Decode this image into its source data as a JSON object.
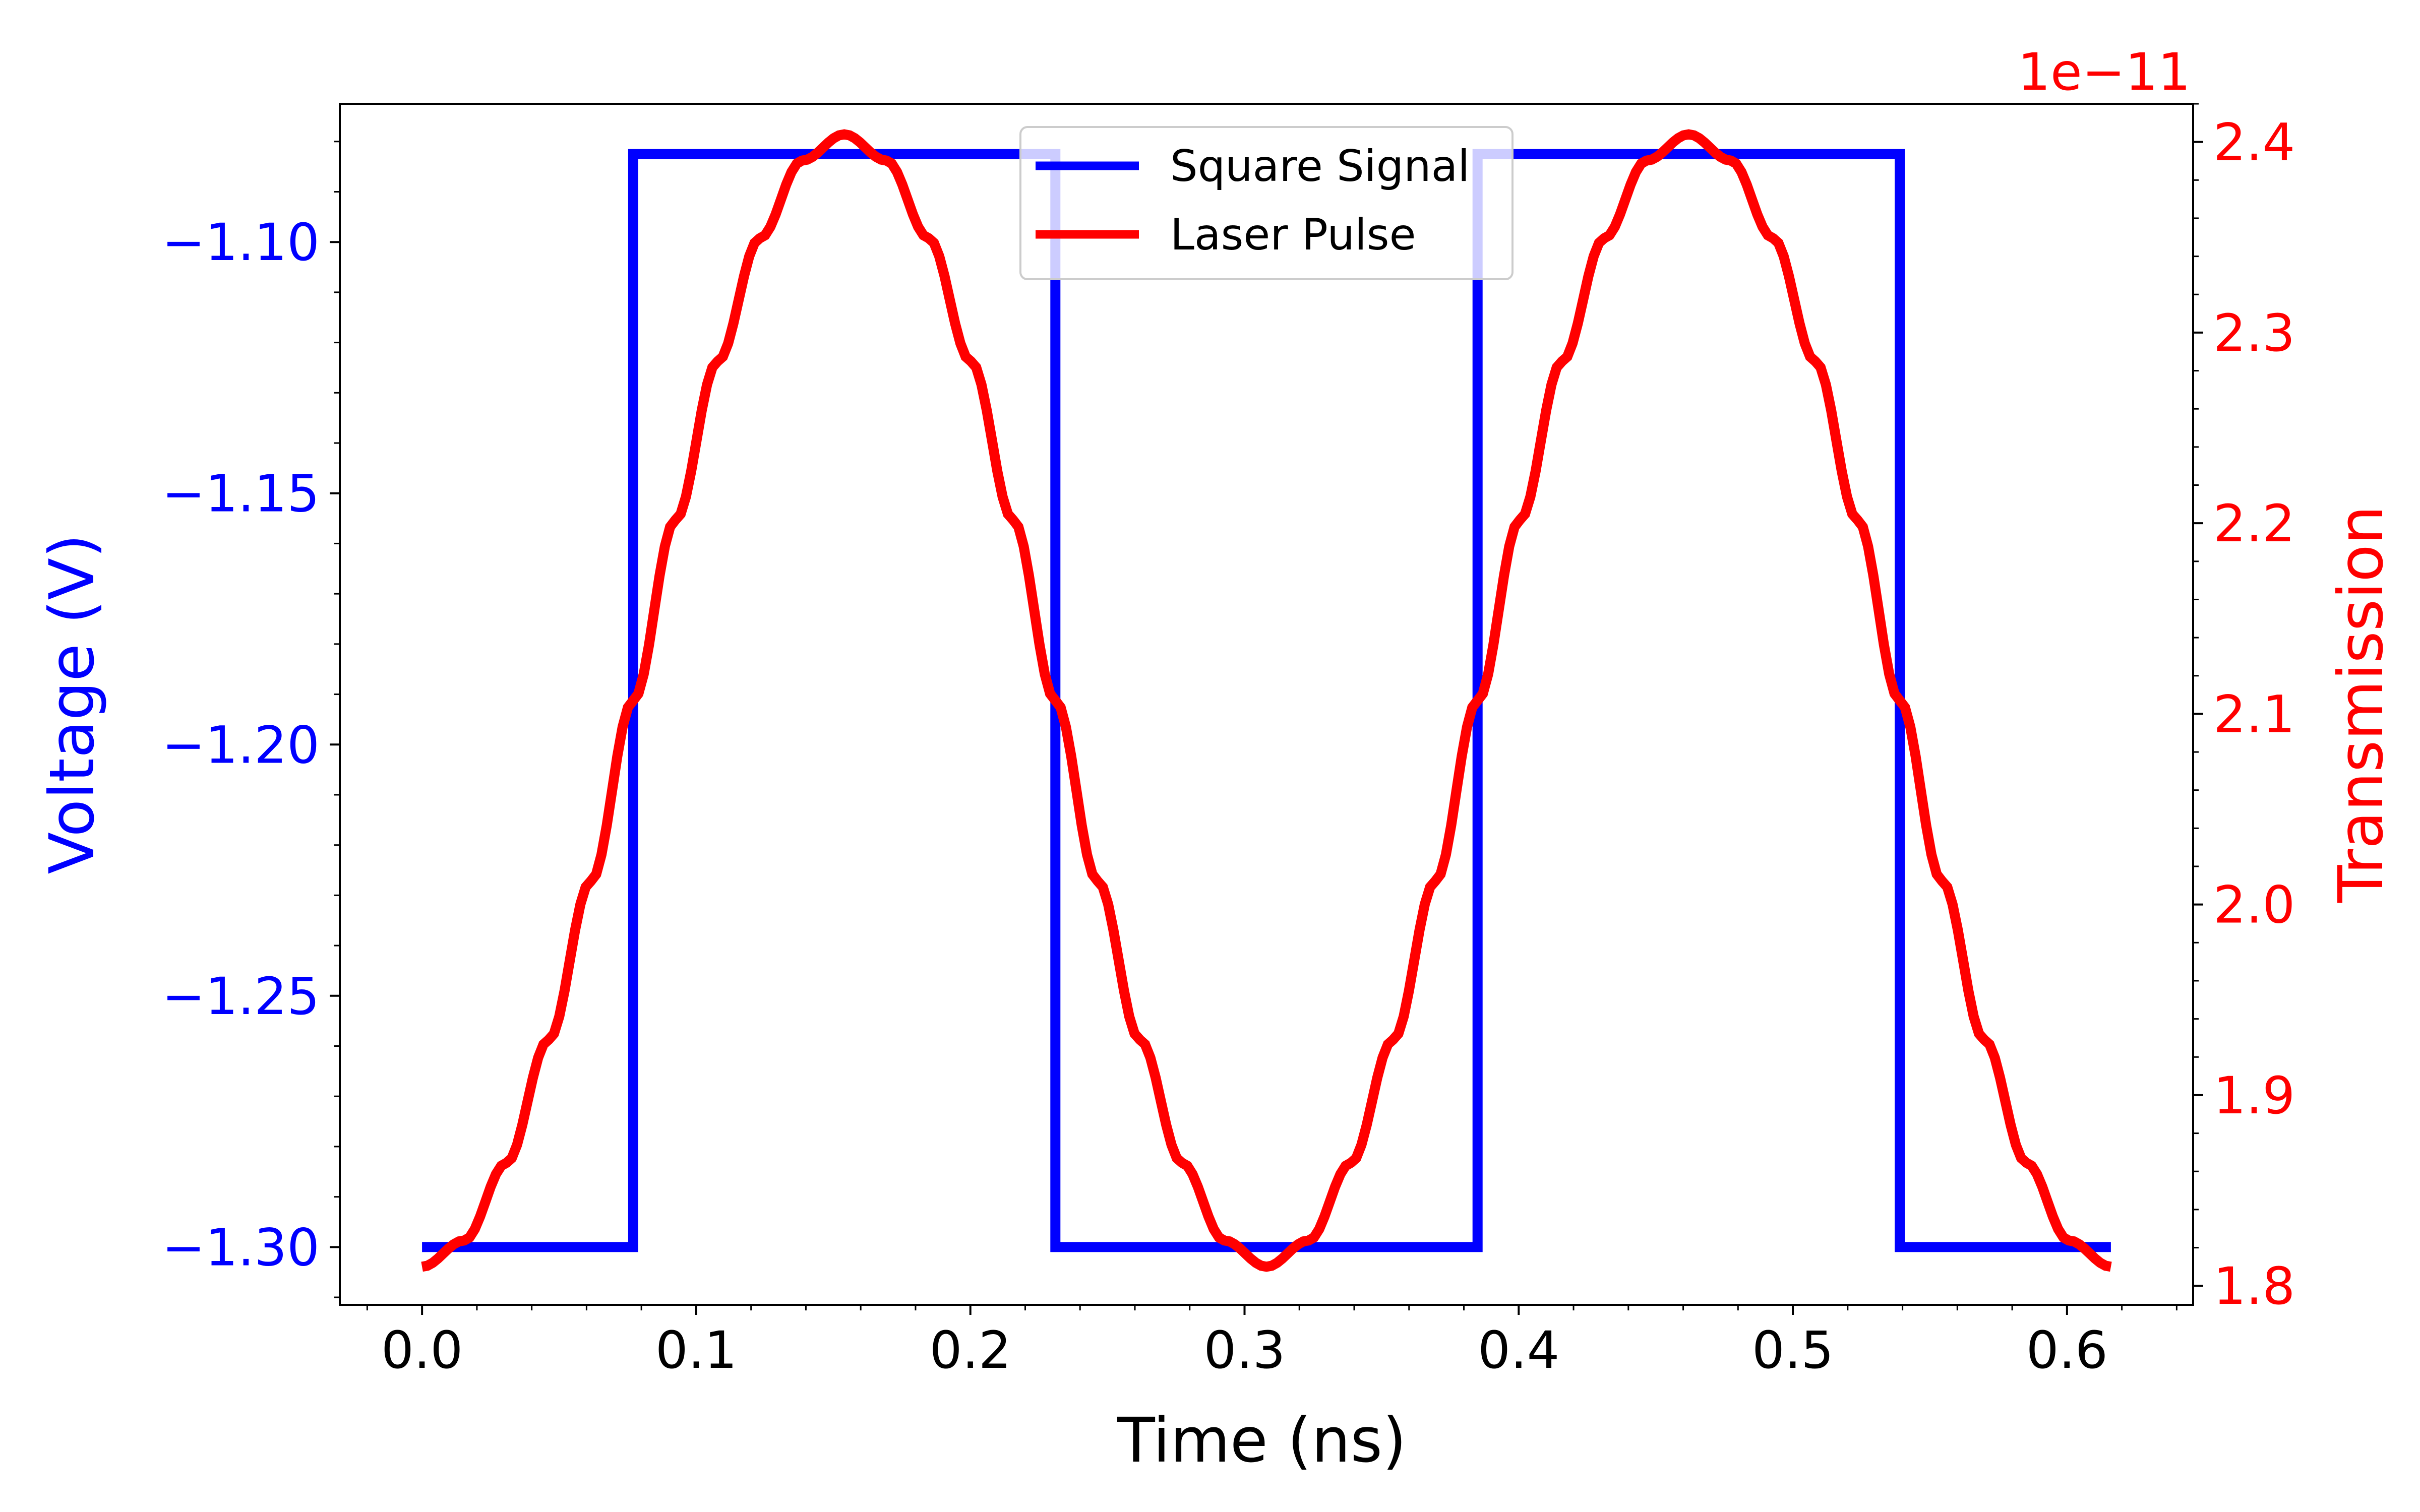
{
  "chart_data": {
    "type": "line",
    "title": "",
    "xlabel": "Time (ns)",
    "ylabel_left": "Voltage (V)",
    "ylabel_right": "Transmission",
    "right_offset_text": "1e−11",
    "xlim": [
      -0.03,
      0.646
    ],
    "ylim_left": [
      -1.3115,
      -1.0725
    ],
    "ylim_right": [
      1.79,
      2.42
    ],
    "x_ticks": [
      {
        "value": 0.0,
        "label": "0.0"
      },
      {
        "value": 0.1,
        "label": "0.1"
      },
      {
        "value": 0.2,
        "label": "0.2"
      },
      {
        "value": 0.3,
        "label": "0.3"
      },
      {
        "value": 0.4,
        "label": "0.4"
      },
      {
        "value": 0.5,
        "label": "0.5"
      },
      {
        "value": 0.6,
        "label": "0.6"
      }
    ],
    "y_left_ticks": [
      {
        "value": -1.1,
        "label": "−1.10"
      },
      {
        "value": -1.15,
        "label": "−1.15"
      },
      {
        "value": -1.2,
        "label": "−1.20"
      },
      {
        "value": -1.25,
        "label": "−1.25"
      },
      {
        "value": -1.3,
        "label": "−1.30"
      }
    ],
    "y_right_ticks": [
      {
        "value": 1.8,
        "label": "1.8"
      },
      {
        "value": 1.9,
        "label": "1.9"
      },
      {
        "value": 2.0,
        "label": "2.0"
      },
      {
        "value": 2.1,
        "label": "2.1"
      },
      {
        "value": 2.2,
        "label": "2.2"
      },
      {
        "value": 2.3,
        "label": "2.3"
      },
      {
        "value": 2.4,
        "label": "2.4"
      }
    ],
    "legend_position": "top-center",
    "series": [
      {
        "name": "Square Signal",
        "axis": "left",
        "color": "#0000ff",
        "x": [
          0.0,
          0.077,
          0.077,
          0.231,
          0.231,
          0.385,
          0.385,
          0.539,
          0.539,
          0.616
        ],
        "y": [
          -1.3,
          -1.3,
          -1.0825,
          -1.0825,
          -1.3,
          -1.3,
          -1.0825,
          -1.0825,
          -1.3,
          -1.3
        ]
      },
      {
        "name": "Laser Pulse",
        "axis": "right",
        "color": "#ff0000",
        "x": [
          0.0,
          0.0154,
          0.0308,
          0.0462,
          0.0616,
          0.077,
          0.0924,
          0.1078,
          0.1232,
          0.1386,
          0.154,
          0.1694,
          0.1848,
          0.2002,
          0.2156,
          0.231,
          0.2464,
          0.2618,
          0.2772,
          0.2926,
          0.308,
          0.3234,
          0.3388,
          0.3542,
          0.3696,
          0.385,
          0.4004,
          0.4158,
          0.4312,
          0.4466,
          0.462,
          0.4774,
          0.4928,
          0.5082,
          0.5236,
          0.539,
          0.5544,
          0.5698,
          0.5852,
          0.6006,
          0.616
        ],
        "y": [
          1.81,
          1.8238,
          1.8645,
          1.9291,
          2.0123,
          2.107,
          2.2017,
          2.2849,
          2.3495,
          2.3902,
          2.404,
          2.3902,
          2.3495,
          2.2849,
          2.2017,
          2.107,
          2.0123,
          1.9291,
          1.8645,
          1.8238,
          1.81,
          1.8238,
          1.8645,
          1.9291,
          2.0123,
          2.107,
          2.2017,
          2.2849,
          2.3495,
          2.3902,
          2.404,
          2.3902,
          2.3495,
          2.2849,
          2.2017,
          2.107,
          2.0123,
          1.9291,
          1.8645,
          1.8238,
          1.81
        ]
      }
    ]
  }
}
